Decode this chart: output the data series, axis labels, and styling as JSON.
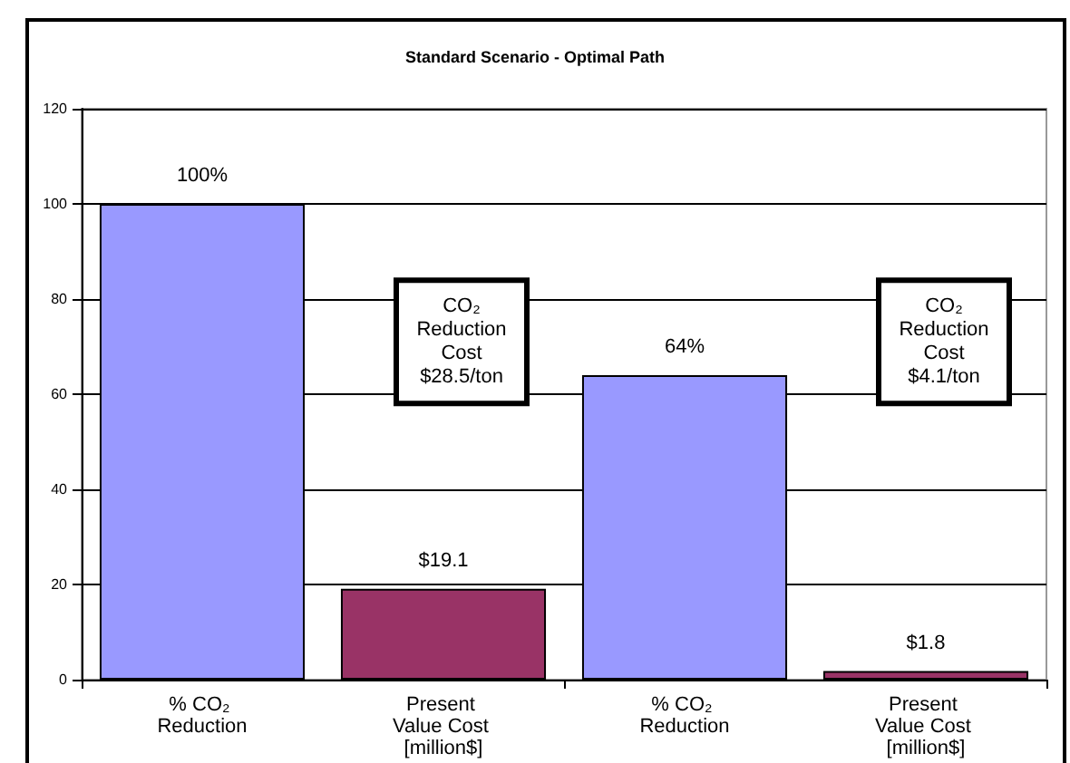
{
  "chart_data": {
    "type": "bar",
    "title": "Standard Scenario - Optimal Path",
    "categories": [
      "% CO₂ Reduction",
      "Present Value Cost [million$]",
      "% CO₂ Reduction",
      "Present Value Cost [million$]"
    ],
    "values": [
      100,
      19.1,
      64,
      1.8
    ],
    "colors": [
      "#9999ff",
      "#993366",
      "#9999ff",
      "#993366"
    ],
    "value_labels": [
      "100%",
      "$19.1",
      "64%",
      "$1.8"
    ],
    "ylim": [
      0,
      120
    ],
    "yticks": [
      0,
      20,
      40,
      60,
      80,
      100,
      120
    ],
    "grid": "y",
    "annotations": [
      "CO₂ Reduction Cost $28.5/ton",
      "CO₂ Reduction Cost $4.1/ton"
    ]
  }
}
